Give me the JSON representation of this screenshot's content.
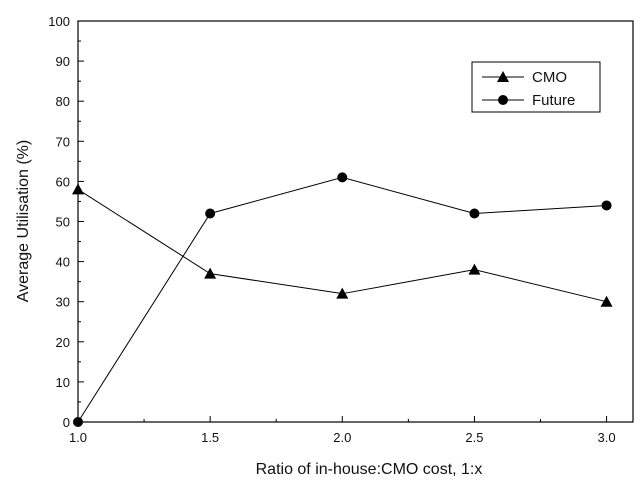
{
  "chart_data": {
    "type": "line",
    "title": "",
    "xlabel": "Ratio of in-house:CMO cost, 1:x",
    "ylabel": "Average Utilisation (%)",
    "x": [
      1.0,
      1.5,
      2.0,
      2.5,
      3.0
    ],
    "x_tick_labels": [
      "1.0",
      "1.5",
      "2.0",
      "2.5",
      "3.0"
    ],
    "y_tick_labels": [
      "0",
      "10",
      "20",
      "30",
      "40",
      "50",
      "60",
      "70",
      "80",
      "90",
      "100"
    ],
    "xlim": [
      1.0,
      3.1
    ],
    "ylim": [
      0,
      100
    ],
    "grid": false,
    "legend_position": "top-right",
    "series": [
      {
        "name": "CMO",
        "marker": "triangle",
        "color": "#000000",
        "values": [
          58,
          37,
          32,
          38,
          30
        ]
      },
      {
        "name": "Future",
        "marker": "circle",
        "color": "#000000",
        "values": [
          0,
          52,
          61,
          52,
          54
        ]
      }
    ]
  }
}
